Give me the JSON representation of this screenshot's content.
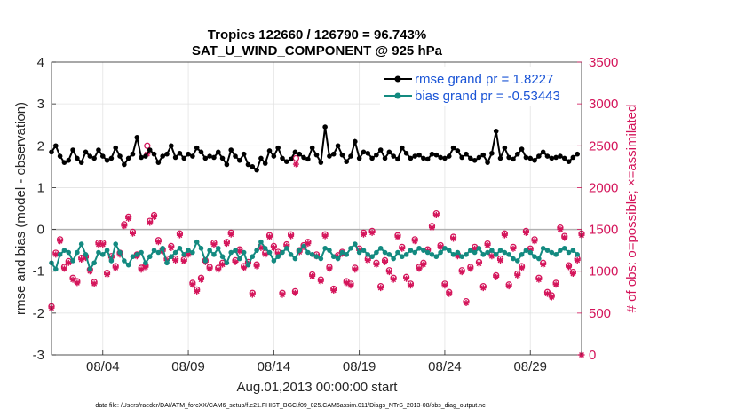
{
  "chart_data": {
    "type": "line",
    "title_line1": "Tropics 122660 / 126790 = 96.743%",
    "title_line2": "SAT_U_WIND_COMPONENT @ 925 hPa",
    "xlabel": "Aug.01,2013 00:00:00 start",
    "ylabel_left": "rmse and bias (model - observation)",
    "ylabel_right": "# of obs: o=possible; ×=assimilated",
    "footnote": "data file: /Users/raeder/DAI/ATM_forcXX/CAM6_setup/f.e21.FHIST_BGC.f09_025.CAM6assim.011/Diags_NTrS_2013-08/obs_diag_output.nc",
    "xlim": [
      1,
      32
    ],
    "ylim_left": [
      -3,
      4
    ],
    "ylim_right": [
      0,
      3500
    ],
    "left_ticks": [
      "-3",
      "-2",
      "-1",
      "0",
      "1",
      "2",
      "3",
      "4"
    ],
    "right_ticks": [
      "0",
      "500",
      "1000",
      "1500",
      "2000",
      "2500",
      "3000",
      "3500"
    ],
    "x_ticks": [
      {
        "day": 4,
        "label": "08/04"
      },
      {
        "day": 9,
        "label": "08/09"
      },
      {
        "day": 14,
        "label": "08/14"
      },
      {
        "day": 19,
        "label": "08/19"
      },
      {
        "day": 24,
        "label": "08/24"
      },
      {
        "day": 29,
        "label": "08/29"
      }
    ],
    "zero_line": 0,
    "grid": true,
    "legend_position": "top-right",
    "series": [
      {
        "name": "rmse grand pr = 1.8227",
        "axis": "left",
        "color": "#000000",
        "marker": "dot",
        "x_start": 1.0,
        "x_step": 0.25,
        "values": [
          1.85,
          2.0,
          1.75,
          1.6,
          1.65,
          1.9,
          1.7,
          1.6,
          1.85,
          1.75,
          1.7,
          1.9,
          1.75,
          1.65,
          1.7,
          1.95,
          1.75,
          1.55,
          1.7,
          1.8,
          1.7,
          1.72,
          1.75,
          1.9,
          1.8,
          1.6,
          1.75,
          1.8,
          2.0,
          1.72,
          1.82,
          1.7,
          1.8,
          1.75,
          1.95,
          1.85,
          1.7,
          1.75,
          1.72,
          1.85,
          1.7,
          1.55,
          1.9,
          1.75,
          1.65,
          1.8,
          1.55,
          1.5,
          1.42,
          1.7,
          1.58,
          1.88,
          1.75,
          1.95,
          1.7,
          1.62,
          1.68,
          1.85,
          1.8,
          1.72,
          1.68,
          1.95,
          1.78,
          1.6,
          1.7,
          1.75,
          1.8,
          2.0,
          1.78,
          1.62,
          1.75,
          2.1,
          1.7,
          1.85,
          1.82,
          1.7,
          1.78,
          1.9,
          1.7,
          1.85,
          1.75,
          1.68,
          1.95,
          1.82,
          1.7,
          1.75,
          1.78,
          1.7,
          1.68,
          1.8,
          1.78,
          1.72,
          1.7,
          1.75,
          1.95,
          1.88,
          1.72,
          1.8,
          1.7,
          1.65,
          1.72,
          1.78,
          1.6,
          1.82,
          1.72,
          1.7,
          1.95,
          1.72,
          1.68,
          1.8,
          1.92,
          1.72,
          1.7,
          1.65,
          1.75,
          1.85,
          1.75,
          1.7,
          1.72,
          1.75,
          1.7,
          1.62,
          1.72,
          1.8,
          1.85,
          1.72
        ],
        "overrides": {
          "6": 2.2,
          "17": 2.45,
          "27": 2.35
        }
      },
      {
        "name": "bias grand pr = -0.53443",
        "axis": "left",
        "color": "#138a80",
        "marker": "dot",
        "x_start": 1.0,
        "x_step": 0.25,
        "values": [
          -0.8,
          -0.95,
          -0.6,
          -0.5,
          -0.55,
          -0.75,
          -0.55,
          -0.35,
          -0.6,
          -0.95,
          -0.8,
          -0.55,
          -0.6,
          -0.5,
          -0.75,
          -0.35,
          -0.55,
          -0.75,
          -0.85,
          -0.65,
          -0.6,
          -0.55,
          -0.8,
          -0.65,
          -0.5,
          -0.55,
          -0.45,
          -0.8,
          -0.65,
          -0.55,
          -0.45,
          -0.6,
          -0.5,
          -0.55,
          -0.3,
          -0.45,
          -0.75,
          -0.5,
          -0.6,
          -0.45,
          -0.65,
          -0.8,
          -0.55,
          -0.5,
          -0.7,
          -0.55,
          -0.85,
          -0.65,
          -0.5,
          -0.3,
          -0.45,
          -0.55,
          -0.75,
          -0.65,
          -0.55,
          -0.45,
          -0.6,
          -0.7,
          -0.5,
          -0.4,
          -0.55,
          -0.6,
          -0.65,
          -0.7,
          -0.45,
          -0.5,
          -0.65,
          -0.7,
          -0.55,
          -0.6,
          -0.45,
          -0.35,
          -0.55,
          -0.5,
          -0.6,
          -0.65,
          -0.55,
          -0.45,
          -0.55,
          -0.6,
          -0.7,
          -0.55,
          -0.65,
          -0.6,
          -0.5,
          -0.55,
          -0.45,
          -0.5,
          -0.55,
          -0.6,
          -0.65,
          -0.55,
          -0.45,
          -0.5,
          -0.6,
          -0.55,
          -0.65,
          -0.6,
          -0.5,
          -0.55,
          -0.45,
          -0.6,
          -0.55,
          -0.5,
          -0.6,
          -0.5,
          -0.55,
          -0.6,
          -0.7,
          -0.75,
          -0.6,
          -0.5,
          -0.55,
          -0.65,
          -0.7,
          -0.45,
          -0.5,
          -0.55,
          -0.6,
          -0.5,
          -0.45,
          -0.55,
          -0.5,
          -0.6,
          -0.5,
          -0.65
        ]
      },
      {
        "name": "obs possible",
        "axis": "right",
        "color": "#d4145a",
        "marker": "circle",
        "x_start": 1.0,
        "x_step": 0.25,
        "values": [
          580,
          1220,
          1380,
          1050,
          1120,
          920,
          880,
          1160,
          1180,
          1020,
          870,
          1340,
          1340,
          980,
          1180,
          1060,
          1220,
          1560,
          1650,
          1470,
          1200,
          1040,
          1070,
          1600,
          1670,
          1370,
          1260,
          1150,
          1300,
          1150,
          1450,
          1140,
          1220,
          860,
          780,
          920,
          1130,
          1050,
          1340,
          1040,
          1100,
          1350,
          1460,
          1130,
          1260,
          1060,
          1110,
          740,
          1080,
          1300,
          1220,
          1430,
          1300,
          1230,
          740,
          1320,
          1440,
          760,
          1250,
          1310,
          1350,
          960,
          1200,
          900,
          1440,
          1050,
          790,
          1190,
          1230,
          880,
          850,
          1040,
          1270,
          1460,
          1150,
          1480,
          1100,
          820,
          1130,
          1010,
          920,
          1430,
          1290,
          930,
          850,
          1380,
          1050,
          1100,
          1260,
          1540,
          1690,
          1310,
          850,
          750,
          1410,
          1200,
          1010,
          640,
          1050,
          1290,
          1110,
          820,
          1330,
          1200,
          950,
          1150,
          1450,
          840,
          1290,
          970,
          1060,
          1480,
          1270,
          1380,
          920,
          1100,
          750,
          710,
          860,
          1520,
          1420,
          1070,
          990,
          1150,
          1450,
          580,
          780,
          1350
        ]
      },
      {
        "name": "obs assimilated",
        "axis": "right",
        "color": "#d4145a",
        "marker": "cross",
        "x_start": 1.0,
        "x_step": 0.25,
        "values": [
          560,
          1200,
          1360,
          1030,
          1100,
          900,
          860,
          1140,
          1160,
          1000,
          850,
          1320,
          1320,
          960,
          1160,
          1040,
          1200,
          1540,
          1630,
          1450,
          1180,
          1020,
          1050,
          1580,
          1650,
          1350,
          1240,
          1130,
          1280,
          1130,
          1430,
          1120,
          1200,
          840,
          760,
          900,
          1110,
          1030,
          1320,
          1020,
          1080,
          1330,
          1440,
          1110,
          1240,
          1040,
          1090,
          720,
          1060,
          1280,
          1200,
          1410,
          1280,
          1210,
          720,
          1300,
          1420,
          740,
          1230,
          1290,
          1330,
          940,
          1180,
          880,
          1420,
          1030,
          770,
          1170,
          1210,
          860,
          830,
          1020,
          1250,
          1440,
          1130,
          1460,
          1080,
          800,
          1110,
          990,
          900,
          1410,
          1270,
          910,
          830,
          1360,
          1030,
          1080,
          1240,
          1520,
          1670,
          1290,
          830,
          730,
          1390,
          1180,
          990,
          620,
          1030,
          1270,
          1090,
          800,
          1310,
          1180,
          930,
          1130,
          1430,
          820,
          1270,
          950,
          1040,
          1460,
          1250,
          1360,
          900,
          1080,
          730,
          690,
          840,
          1500,
          1400,
          1050,
          970,
          1130,
          1430,
          560,
          760,
          1330
        ]
      }
    ],
    "extra_points": {
      "possible": [
        {
          "x": 6.6,
          "v": 2500
        },
        {
          "x": 15.3,
          "v": 2350
        }
      ],
      "assimilated": [
        {
          "x": 6.6,
          "v": 2400
        },
        {
          "x": 15.3,
          "v": 2280
        },
        {
          "x": 32.0,
          "v": 0
        }
      ]
    }
  }
}
